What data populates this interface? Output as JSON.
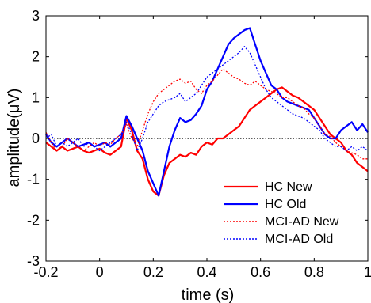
{
  "chart_data": {
    "type": "line",
    "xlabel": "time (s)",
    "ylabel": "amplitude(μV)",
    "xlim": [
      -0.2,
      1.0
    ],
    "ylim": [
      -3,
      3
    ],
    "x_ticks": [
      -0.2,
      0,
      0.2,
      0.4,
      0.6,
      0.8,
      1
    ],
    "x_tick_labels": [
      "-0.2",
      "0",
      "0.2",
      "0.4",
      "0.6",
      "0.8",
      "1"
    ],
    "y_ticks": [
      -3,
      -2,
      -1,
      0,
      1,
      2,
      3
    ],
    "y_tick_labels": [
      "-3",
      "-2",
      "-1",
      "0",
      "1",
      "2",
      "3"
    ],
    "grid": false,
    "legend_position": "bottom-right",
    "zero_line": {
      "y": 0,
      "color": "#000000",
      "style": "dotted"
    },
    "series": [
      {
        "name": "HC New",
        "color": "#ff0000",
        "style": "solid",
        "x": [
          -0.2,
          -0.18,
          -0.16,
          -0.14,
          -0.12,
          -0.1,
          -0.08,
          -0.06,
          -0.04,
          -0.02,
          0,
          0.02,
          0.04,
          0.06,
          0.08,
          0.1,
          0.12,
          0.14,
          0.16,
          0.18,
          0.2,
          0.22,
          0.24,
          0.26,
          0.28,
          0.3,
          0.32,
          0.34,
          0.36,
          0.38,
          0.4,
          0.42,
          0.44,
          0.46,
          0.48,
          0.5,
          0.52,
          0.54,
          0.56,
          0.58,
          0.6,
          0.62,
          0.64,
          0.66,
          0.68,
          0.7,
          0.72,
          0.74,
          0.76,
          0.78,
          0.8,
          0.82,
          0.84,
          0.86,
          0.88,
          0.9,
          0.92,
          0.94,
          0.96,
          0.98,
          1.0
        ],
        "values": [
          -0.1,
          -0.2,
          -0.3,
          -0.2,
          -0.3,
          -0.25,
          -0.2,
          -0.3,
          -0.35,
          -0.3,
          -0.25,
          -0.35,
          -0.4,
          -0.3,
          -0.2,
          0.5,
          0.2,
          -0.3,
          -0.5,
          -1.0,
          -1.3,
          -1.4,
          -0.9,
          -0.6,
          -0.5,
          -0.4,
          -0.45,
          -0.35,
          -0.4,
          -0.2,
          -0.1,
          -0.15,
          0.0,
          0.0,
          0.1,
          0.2,
          0.3,
          0.5,
          0.7,
          0.8,
          0.9,
          1.0,
          1.1,
          1.2,
          1.25,
          1.15,
          1.05,
          1.0,
          0.9,
          0.8,
          0.7,
          0.5,
          0.3,
          0.1,
          0.0,
          -0.1,
          -0.3,
          -0.4,
          -0.6,
          -0.7,
          -0.8
        ]
      },
      {
        "name": "HC Old",
        "color": "#0000ff",
        "style": "solid",
        "x": [
          -0.2,
          -0.18,
          -0.16,
          -0.14,
          -0.12,
          -0.1,
          -0.08,
          -0.06,
          -0.04,
          -0.02,
          0,
          0.02,
          0.04,
          0.06,
          0.08,
          0.1,
          0.12,
          0.14,
          0.16,
          0.18,
          0.2,
          0.22,
          0.24,
          0.26,
          0.28,
          0.3,
          0.32,
          0.34,
          0.36,
          0.38,
          0.4,
          0.42,
          0.44,
          0.46,
          0.48,
          0.5,
          0.52,
          0.54,
          0.56,
          0.58,
          0.6,
          0.62,
          0.64,
          0.66,
          0.68,
          0.7,
          0.72,
          0.74,
          0.76,
          0.78,
          0.8,
          0.82,
          0.84,
          0.86,
          0.88,
          0.9,
          0.92,
          0.94,
          0.96,
          0.98,
          1.0
        ],
        "values": [
          0.1,
          -0.1,
          -0.2,
          -0.1,
          0.0,
          -0.1,
          -0.2,
          -0.15,
          -0.1,
          -0.2,
          -0.15,
          -0.1,
          -0.2,
          -0.1,
          0.0,
          0.55,
          0.3,
          0.0,
          -0.3,
          -0.8,
          -1.1,
          -1.4,
          -0.8,
          -0.2,
          0.2,
          0.5,
          0.4,
          0.45,
          0.6,
          0.8,
          1.2,
          1.4,
          1.7,
          2.0,
          2.3,
          2.45,
          2.55,
          2.65,
          2.7,
          2.3,
          1.9,
          1.6,
          1.3,
          1.2,
          1.0,
          0.9,
          0.85,
          0.8,
          0.75,
          0.7,
          0.5,
          0.3,
          0.1,
          0.0,
          0.0,
          0.2,
          0.3,
          0.4,
          0.2,
          0.35,
          0.15
        ]
      },
      {
        "name": "MCI-AD New",
        "color": "#ff0000",
        "style": "dotted",
        "x": [
          -0.2,
          -0.18,
          -0.16,
          -0.14,
          -0.12,
          -0.1,
          -0.08,
          -0.06,
          -0.04,
          -0.02,
          0,
          0.02,
          0.04,
          0.06,
          0.08,
          0.1,
          0.12,
          0.14,
          0.16,
          0.18,
          0.2,
          0.22,
          0.24,
          0.26,
          0.28,
          0.3,
          0.32,
          0.34,
          0.36,
          0.38,
          0.4,
          0.42,
          0.44,
          0.46,
          0.48,
          0.5,
          0.52,
          0.54,
          0.56,
          0.58,
          0.6,
          0.62,
          0.64,
          0.66,
          0.68,
          0.7,
          0.72,
          0.74,
          0.76,
          0.78,
          0.8,
          0.82,
          0.84,
          0.86,
          0.88,
          0.9,
          0.92,
          0.94,
          0.96,
          0.98,
          1.0
        ],
        "values": [
          0.15,
          -0.1,
          -0.3,
          -0.2,
          0.0,
          -0.1,
          -0.2,
          -0.3,
          -0.2,
          -0.1,
          -0.2,
          -0.1,
          -0.15,
          0.0,
          0.1,
          0.35,
          0.0,
          -0.2,
          0.2,
          0.6,
          0.9,
          1.1,
          1.2,
          1.3,
          1.4,
          1.45,
          1.35,
          1.4,
          1.2,
          1.1,
          1.3,
          1.4,
          1.55,
          1.7,
          1.6,
          1.5,
          1.45,
          1.35,
          1.3,
          1.4,
          1.3,
          1.2,
          1.15,
          1.1,
          1.0,
          1.0,
          0.9,
          0.8,
          0.75,
          0.6,
          0.5,
          0.3,
          0.1,
          0.05,
          -0.1,
          -0.2,
          -0.3,
          -0.35,
          -0.4,
          -0.5,
          -0.5
        ]
      },
      {
        "name": "MCI-AD Old",
        "color": "#0000ff",
        "style": "dotted",
        "x": [
          -0.2,
          -0.18,
          -0.16,
          -0.14,
          -0.12,
          -0.1,
          -0.08,
          -0.06,
          -0.04,
          -0.02,
          0,
          0.02,
          0.04,
          0.06,
          0.08,
          0.1,
          0.12,
          0.14,
          0.16,
          0.18,
          0.2,
          0.22,
          0.24,
          0.26,
          0.28,
          0.3,
          0.32,
          0.34,
          0.36,
          0.38,
          0.4,
          0.42,
          0.44,
          0.46,
          0.48,
          0.5,
          0.52,
          0.54,
          0.56,
          0.58,
          0.6,
          0.62,
          0.64,
          0.66,
          0.68,
          0.7,
          0.72,
          0.74,
          0.76,
          0.78,
          0.8,
          0.82,
          0.84,
          0.86,
          0.88,
          0.9,
          0.92,
          0.94,
          0.96,
          0.98,
          1.0
        ],
        "values": [
          0.0,
          0.1,
          -0.2,
          -0.1,
          -0.2,
          -0.1,
          0.0,
          -0.2,
          -0.1,
          -0.2,
          -0.3,
          -0.2,
          -0.1,
          0.0,
          0.1,
          0.4,
          0.1,
          -0.3,
          0.0,
          0.4,
          0.6,
          0.8,
          0.9,
          0.95,
          1.0,
          1.1,
          0.9,
          1.0,
          1.1,
          1.3,
          1.5,
          1.6,
          1.7,
          1.8,
          1.9,
          2.0,
          2.1,
          2.25,
          2.1,
          1.8,
          1.5,
          1.2,
          1.0,
          0.9,
          0.8,
          0.7,
          0.6,
          0.55,
          0.5,
          0.4,
          0.3,
          0.2,
          0.0,
          -0.1,
          -0.2,
          -0.2,
          -0.3,
          -0.2,
          -0.3,
          -0.2,
          -0.3
        ]
      }
    ]
  }
}
